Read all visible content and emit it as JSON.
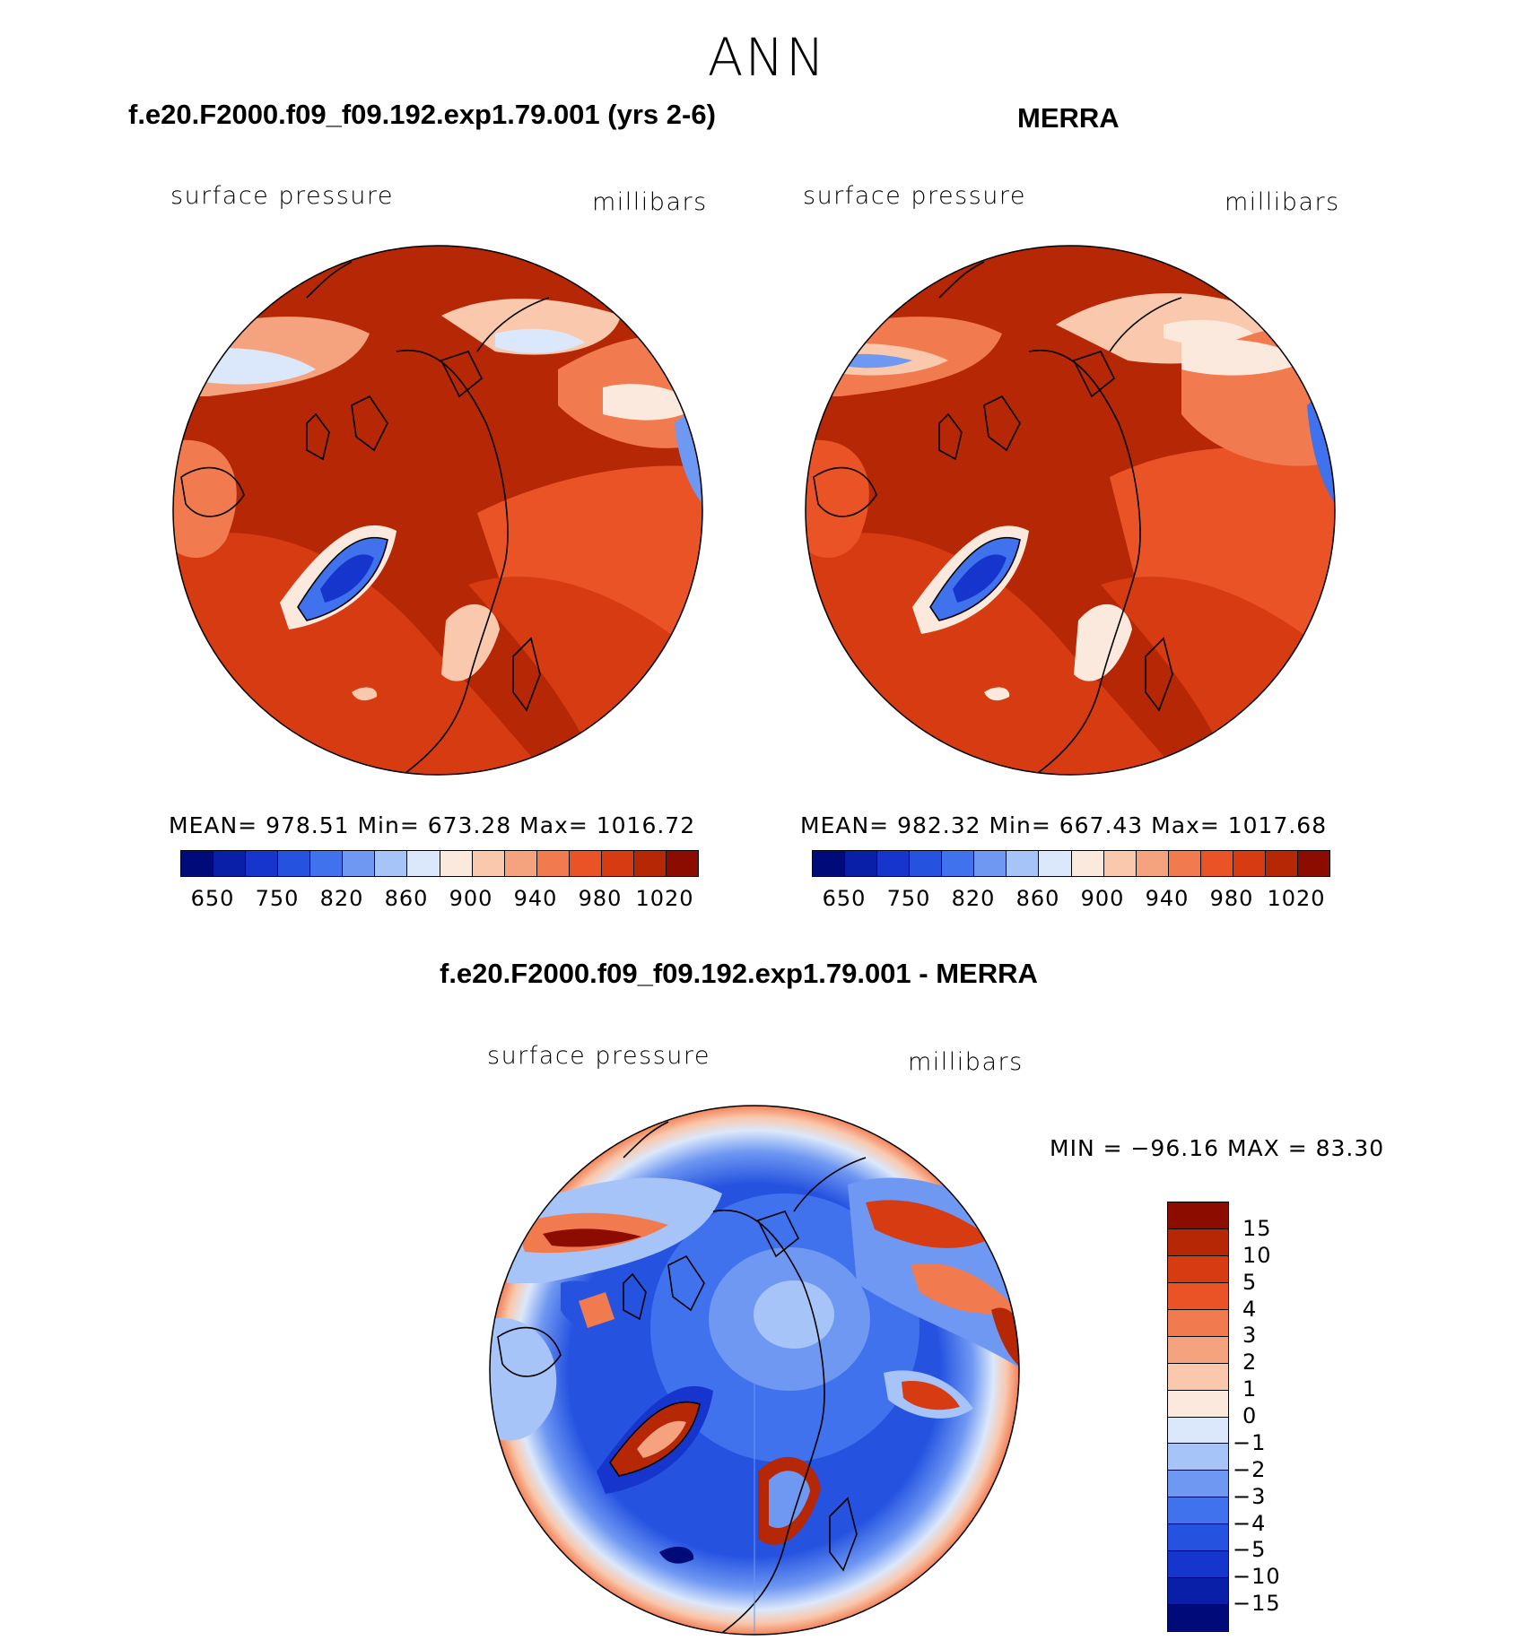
{
  "season": "ANN",
  "panels": [
    {
      "title": "f.e20.F2000.f09_f09.192.exp1.79.001 (yrs 2-6)",
      "left_label": "surface pressure",
      "right_label": "millibars",
      "stats": "MEAN= 978.51   Min= 673.28   Max= 1016.72"
    },
    {
      "title": "MERRA",
      "left_label": "surface pressure",
      "right_label": "millibars",
      "stats": "MEAN= 982.32   Min= 667.43   Max= 1017.68"
    }
  ],
  "abs_colorbar": {
    "colors": [
      "#000a78",
      "#0a1fa8",
      "#1535cc",
      "#2553e0",
      "#3f72ec",
      "#6f98f2",
      "#a7c4f8",
      "#dbe8fb",
      "#fbe9dd",
      "#f9c8ad",
      "#f5a27f",
      "#f27a4f",
      "#ea5325",
      "#d63b12",
      "#b52705",
      "#8c0d00"
    ],
    "ticks": [
      "650",
      "750",
      "820",
      "860",
      "900",
      "940",
      "980",
      "1020"
    ]
  },
  "diff": {
    "title": "f.e20.F2000.f09_f09.192.exp1.79.001 - MERRA",
    "left_label": "surface pressure",
    "right_label": "millibars",
    "stats": "MIN = −96.16 MAX =   83.30",
    "colorbar": {
      "colors": [
        "#8c0d00",
        "#b52705",
        "#d63b12",
        "#ea5325",
        "#f27a4f",
        "#f5a27f",
        "#f9c8ad",
        "#fbe9dd",
        "#dbe8fb",
        "#a7c4f8",
        "#6f98f2",
        "#3f72ec",
        "#2553e0",
        "#1535cc",
        "#0a1fa8",
        "#000a78"
      ],
      "labels": [
        "15",
        "10",
        "5",
        "4",
        "3",
        "2",
        "1",
        "0",
        "−1",
        "−2",
        "−3",
        "−4",
        "−5",
        "−10",
        "−15"
      ]
    }
  }
}
